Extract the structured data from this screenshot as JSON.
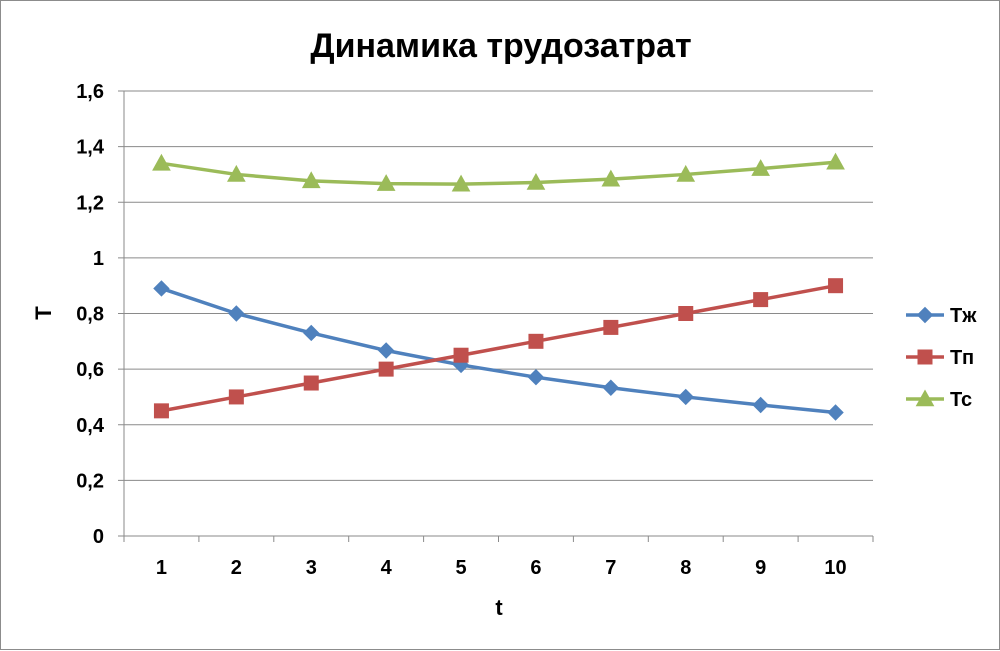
{
  "chart_data": {
    "type": "line",
    "title": "Динамика трудозатрат",
    "xlabel": "t",
    "ylabel": "Т",
    "categories": [
      "1",
      "2",
      "3",
      "4",
      "5",
      "6",
      "7",
      "8",
      "9",
      "10"
    ],
    "ylim": [
      0,
      1.6
    ],
    "yticks": [
      "0",
      "0,2",
      "0,4",
      "0,6",
      "0,8",
      "1",
      "1,2",
      "1,4",
      "1,6"
    ],
    "grid": true,
    "legend_position": "right",
    "series": [
      {
        "name": "Тж",
        "color": "#4f81bd",
        "marker": "diamond",
        "values": [
          0.89,
          0.8,
          0.73,
          0.667,
          0.615,
          0.571,
          0.533,
          0.5,
          0.471,
          0.444
        ]
      },
      {
        "name": "Тп",
        "color": "#c0504d",
        "marker": "square",
        "values": [
          0.45,
          0.5,
          0.55,
          0.6,
          0.65,
          0.7,
          0.75,
          0.8,
          0.85,
          0.9
        ]
      },
      {
        "name": "Тс",
        "color": "#9bbb59",
        "marker": "triangle",
        "values": [
          1.34,
          1.3,
          1.277,
          1.267,
          1.265,
          1.271,
          1.283,
          1.3,
          1.321,
          1.344
        ]
      }
    ]
  }
}
